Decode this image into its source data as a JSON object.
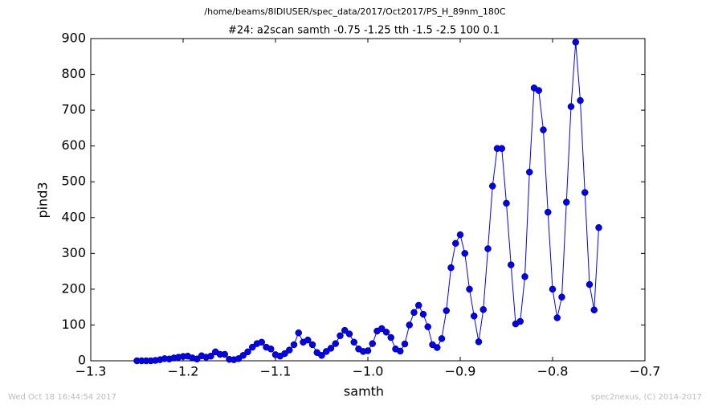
{
  "chart_data": {
    "type": "line",
    "suptitle": "/home/beams/8IDIUSER/spec_data/2017/Oct2017/PS_H_89nm_180C",
    "title": "#24: a2scan  samth -0.75 -1.25  tth -1.5 -2.5  100 0.1",
    "xlabel": "samth",
    "ylabel": "pind3",
    "color": "#0000ff",
    "x": [
      -1.25,
      -1.245,
      -1.24,
      -1.235,
      -1.23,
      -1.225,
      -1.22,
      -1.215,
      -1.21,
      -1.205,
      -1.2,
      -1.195,
      -1.19,
      -1.185,
      -1.18,
      -1.175,
      -1.17,
      -1.165,
      -1.16,
      -1.155,
      -1.15,
      -1.145,
      -1.14,
      -1.135,
      -1.13,
      -1.125,
      -1.12,
      -1.115,
      -1.11,
      -1.105,
      -1.1,
      -1.095,
      -1.09,
      -1.085,
      -1.08,
      -1.075,
      -1.07,
      -1.065,
      -1.06,
      -1.055,
      -1.05,
      -1.045,
      -1.04,
      -1.035,
      -1.03,
      -1.025,
      -1.02,
      -1.015,
      -1.01,
      -1.005,
      -1,
      -0.995,
      -0.99,
      -0.985,
      -0.98,
      -0.975,
      -0.97,
      -0.965,
      -0.96,
      -0.955,
      -0.95,
      -0.945,
      -0.94,
      -0.935,
      -0.93,
      -0.925,
      -0.92,
      -0.915,
      -0.91,
      -0.905,
      -0.9,
      -0.895,
      -0.89,
      -0.885,
      -0.88,
      -0.875,
      -0.87,
      -0.865,
      -0.86,
      -0.855,
      -0.85,
      -0.845,
      -0.84,
      -0.835,
      -0.83,
      -0.825,
      -0.82,
      -0.815,
      -0.81,
      -0.805,
      -0.8,
      -0.795,
      -0.79,
      -0.785,
      -0.78,
      -0.775,
      -0.77,
      -0.765,
      -0.76,
      -0.755,
      -0.75
    ],
    "values": [
      0,
      0,
      0,
      0,
      1,
      3,
      6,
      5,
      8,
      10,
      12,
      13,
      8,
      5,
      14,
      10,
      13,
      25,
      18,
      18,
      4,
      3,
      6,
      15,
      25,
      38,
      48,
      52,
      38,
      33,
      17,
      13,
      20,
      30,
      45,
      78,
      52,
      58,
      45,
      23,
      15,
      26,
      35,
      48,
      70,
      85,
      75,
      52,
      33,
      26,
      28,
      48,
      83,
      90,
      80,
      65,
      33,
      27,
      47,
      100,
      135,
      155,
      130,
      95,
      45,
      37,
      62,
      140,
      260,
      328,
      352,
      300,
      200,
      125,
      53,
      143,
      313,
      488,
      593,
      593,
      440,
      268,
      103,
      110,
      235,
      527,
      762,
      755,
      645,
      415,
      200,
      120,
      178,
      443,
      710,
      890,
      727,
      470,
      213,
      142,
      372
    ],
    "xlim": [
      -1.3,
      -0.7
    ],
    "xticks": [
      {
        "value": -1.3,
        "label": "−1.3"
      },
      {
        "value": -1.2,
        "label": "−1.2"
      },
      {
        "value": -1.1,
        "label": "−1.1"
      },
      {
        "value": -1.0,
        "label": "−1.0"
      },
      {
        "value": -0.9,
        "label": "−0.9"
      },
      {
        "value": -0.8,
        "label": "−0.8"
      },
      {
        "value": -0.7,
        "label": "−0.7"
      }
    ],
    "ylim": [
      0,
      900
    ],
    "yticks": [
      0,
      100,
      200,
      300,
      400,
      500,
      600,
      700,
      800,
      900
    ]
  },
  "footer": {
    "left": "Wed Oct 18 16:44:54 2017",
    "right": "spec2nexus, (C) 2014-2017"
  }
}
